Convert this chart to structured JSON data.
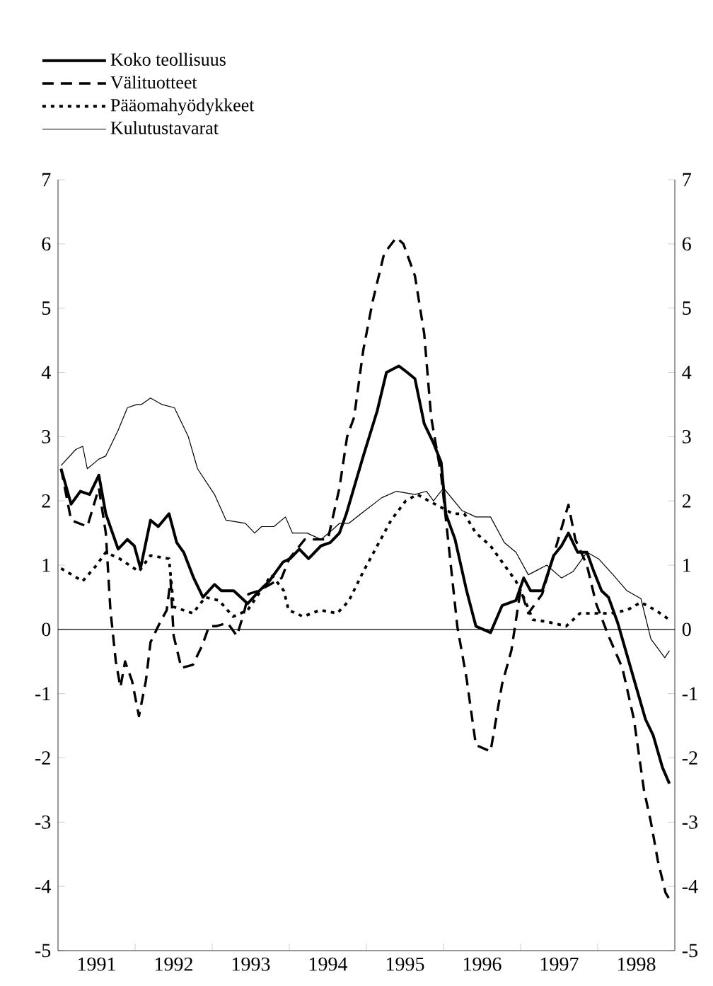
{
  "chart_data": {
    "type": "line",
    "xlim": [
      1991,
      1999
    ],
    "ylim": [
      -5,
      7
    ],
    "y2lim": [
      -5,
      7
    ],
    "xticks": [
      {
        "value": 1992,
        "label": null
      },
      {
        "value": 1993,
        "label": null
      },
      {
        "value": 1994,
        "label": null
      },
      {
        "value": 1995,
        "label": null
      },
      {
        "value": 1996,
        "label": null
      },
      {
        "value": 1997,
        "label": null
      },
      {
        "value": 1998,
        "label": null
      },
      {
        "value": 1991.5,
        "label": "1991"
      },
      {
        "value": 1992.5,
        "label": "1992"
      },
      {
        "value": 1993.5,
        "label": "1993"
      },
      {
        "value": 1994.5,
        "label": "1994"
      },
      {
        "value": 1995.5,
        "label": "1995"
      },
      {
        "value": 1996.5,
        "label": "1996"
      },
      {
        "value": 1997.5,
        "label": "1997"
      },
      {
        "value": 1998.5,
        "label": "1998"
      }
    ],
    "yticks": [
      -5,
      -4,
      -3,
      -2,
      -1,
      0,
      1,
      2,
      3,
      4,
      5,
      6,
      7
    ],
    "y2ticks": [
      -5,
      -4,
      -3,
      -2,
      -1,
      0,
      1,
      2,
      3,
      4,
      5,
      6,
      7
    ],
    "legend": "top left",
    "ref_lines": [
      {
        "axis": "y",
        "value": 0,
        "color": "#000000"
      }
    ],
    "series": [
      {
        "name": "Koko teollisuus",
        "color": "#000000",
        "line_style": "solid",
        "x": [
          1991.04,
          1991.17,
          1991.29,
          1991.41,
          1991.53,
          1991.62,
          1991.78,
          1991.9,
          1991.99,
          1992.07,
          1992.2,
          1992.3,
          1992.44,
          1992.54,
          1992.63,
          1992.76,
          1992.88,
          1993.03,
          1993.12,
          1993.28,
          1993.46,
          1993.61,
          1993.74,
          1993.92,
          1994.01,
          1994.13,
          1994.25,
          1994.41,
          1994.53,
          1994.65,
          1994.74,
          1994.96,
          1995.14,
          1995.26,
          1995.42,
          1995.53,
          1995.63,
          1995.75,
          1995.87,
          1995.97,
          1996.03,
          1996.15,
          1996.3,
          1996.42,
          1996.61,
          1996.76,
          1996.94,
          1997.04,
          1997.13,
          1997.28,
          1997.43,
          1997.53,
          1997.62,
          1997.74,
          1997.86,
          1997.95,
          1998.05,
          1998.14,
          1998.26,
          1998.38,
          1998.5,
          1998.62,
          1998.72,
          1998.84,
          1998.93
        ],
        "values": [
          2.5,
          1.95,
          2.15,
          2.1,
          2.4,
          1.8,
          1.25,
          1.4,
          1.3,
          0.95,
          1.7,
          1.6,
          1.8,
          1.35,
          1.2,
          0.8,
          0.5,
          0.7,
          0.6,
          0.6,
          0.4,
          0.6,
          0.75,
          1.05,
          1.1,
          1.25,
          1.1,
          1.3,
          1.35,
          1.5,
          1.8,
          2.7,
          3.4,
          4.0,
          4.1,
          4.0,
          3.9,
          3.2,
          2.9,
          2.6,
          1.8,
          1.4,
          0.6,
          0.05,
          -0.05,
          0.37,
          0.45,
          0.8,
          0.6,
          0.6,
          1.15,
          1.3,
          1.5,
          1.2,
          1.2,
          0.9,
          0.6,
          0.5,
          0.1,
          -0.4,
          -0.9,
          -1.4,
          -1.65,
          -2.15,
          -2.4
        ]
      },
      {
        "name": "Välituotteet",
        "color": "#000000",
        "line_style": "dashed",
        "x": [
          1991.04,
          1991.17,
          1991.38,
          1991.53,
          1991.62,
          1991.68,
          1991.75,
          1991.81,
          1991.87,
          1991.96,
          1992.05,
          1992.14,
          1992.2,
          1992.32,
          1992.41,
          1992.46,
          1992.5,
          1992.6,
          1992.75,
          1992.87,
          1992.96,
          1993.05,
          1993.2,
          1993.32,
          1993.41,
          1993.47,
          1993.6,
          1993.9,
          1994.0,
          1994.2,
          1994.5,
          1994.65,
          1994.75,
          1994.84,
          1994.96,
          1995.08,
          1995.23,
          1995.39,
          1995.48,
          1995.63,
          1995.75,
          1995.84,
          1995.97,
          1996.18,
          1996.3,
          1996.42,
          1996.61,
          1996.76,
          1996.88,
          1997.0,
          1997.1,
          1997.28,
          1997.38,
          1997.62,
          1997.71,
          1997.86,
          1997.98,
          1998.14,
          1998.32,
          1998.47,
          1998.6,
          1998.69,
          1998.78,
          1998.88,
          1998.93
        ],
        "values": [
          2.5,
          1.7,
          1.6,
          2.2,
          1.5,
          0.3,
          -0.5,
          -0.9,
          -0.5,
          -0.8,
          -1.35,
          -0.8,
          -0.2,
          0.1,
          0.3,
          0.77,
          -0.1,
          -0.6,
          -0.55,
          -0.25,
          0.05,
          0.05,
          0.1,
          -0.1,
          0.25,
          0.55,
          0.6,
          0.8,
          1.1,
          1.4,
          1.4,
          2.2,
          3.0,
          3.3,
          4.35,
          5.1,
          5.85,
          6.1,
          6.0,
          5.5,
          4.6,
          3.3,
          2.4,
          0.04,
          -0.77,
          -1.8,
          -1.9,
          -0.85,
          -0.33,
          0.62,
          0.25,
          0.55,
          0.96,
          1.94,
          1.4,
          1.0,
          0.4,
          -0.1,
          -0.6,
          -1.4,
          -2.5,
          -3.0,
          -3.6,
          -4.1,
          -4.2
        ]
      },
      {
        "name": "Pääomahyödykkeet",
        "color": "#000000",
        "line_style": "dotted",
        "x": [
          1991.04,
          1991.32,
          1991.5,
          1991.62,
          1991.8,
          1992.05,
          1992.2,
          1992.44,
          1992.5,
          1992.75,
          1992.91,
          1993.09,
          1993.27,
          1993.46,
          1993.63,
          1993.77,
          1993.93,
          1993.99,
          1994.18,
          1994.4,
          1994.62,
          1994.77,
          1994.96,
          1995.14,
          1995.32,
          1995.51,
          1995.66,
          1995.81,
          1995.97,
          1996.12,
          1996.27,
          1996.42,
          1996.61,
          1996.76,
          1996.94,
          1997.04,
          1997.16,
          1997.34,
          1997.59,
          1997.77,
          1997.98,
          1998.17,
          1998.38,
          1998.56,
          1998.75,
          1998.93
        ],
        "values": [
          0.95,
          0.75,
          1.0,
          1.2,
          1.1,
          0.9,
          1.15,
          1.1,
          0.35,
          0.25,
          0.5,
          0.45,
          0.2,
          0.3,
          0.6,
          0.85,
          0.6,
          0.3,
          0.2,
          0.3,
          0.25,
          0.44,
          0.9,
          1.3,
          1.7,
          2.0,
          2.1,
          2.0,
          1.9,
          1.8,
          1.8,
          1.5,
          1.3,
          1.05,
          0.75,
          0.5,
          0.15,
          0.12,
          0.05,
          0.25,
          0.25,
          0.25,
          0.3,
          0.42,
          0.3,
          0.15
        ]
      },
      {
        "name": "Kulutustavarat",
        "color": "#000000",
        "line_style": "solid",
        "x": [
          1991.04,
          1991.23,
          1991.32,
          1991.38,
          1991.53,
          1991.62,
          1991.78,
          1991.9,
          1992.02,
          1992.08,
          1992.2,
          1992.35,
          1992.51,
          1992.69,
          1992.81,
          1993.03,
          1993.18,
          1993.43,
          1993.55,
          1993.64,
          1993.8,
          1993.95,
          1994.04,
          1994.23,
          1994.41,
          1994.56,
          1994.65,
          1994.77,
          1994.93,
          1995.2,
          1995.39,
          1995.63,
          1995.78,
          1995.87,
          1996.0,
          1996.24,
          1996.42,
          1996.61,
          1996.79,
          1996.94,
          1997.1,
          1997.34,
          1997.53,
          1997.68,
          1997.86,
          1998.01,
          1998.2,
          1998.38,
          1998.56,
          1998.69,
          1998.87,
          1998.93
        ],
        "values": [
          2.55,
          2.8,
          2.85,
          2.5,
          2.65,
          2.7,
          3.1,
          3.45,
          3.5,
          3.5,
          3.6,
          3.5,
          3.45,
          3.0,
          2.5,
          2.1,
          1.7,
          1.65,
          1.5,
          1.6,
          1.6,
          1.75,
          1.5,
          1.5,
          1.4,
          1.55,
          1.65,
          1.65,
          1.8,
          2.05,
          2.15,
          2.1,
          2.15,
          2.0,
          2.2,
          1.85,
          1.75,
          1.75,
          1.35,
          1.2,
          0.85,
          1.0,
          0.8,
          0.9,
          1.2,
          1.1,
          0.85,
          0.6,
          0.48,
          -0.15,
          -0.44,
          -0.33
        ]
      }
    ]
  }
}
